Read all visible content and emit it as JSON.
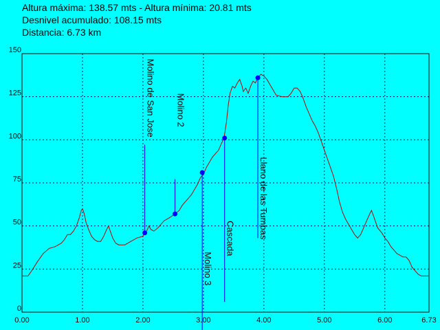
{
  "header": {
    "line1": "Altura máxima: 138.57 mts - Altura mínima: 20.81 mts",
    "line2": "Desnivel acumulado: 108.15 mts",
    "line3": "Distancia: 6.73 km"
  },
  "colors": {
    "background": "#00FFFF",
    "profile": "#B00000",
    "waypoint": "#0000FF",
    "grid": "#000080",
    "axes": "#000000"
  },
  "chart_data": {
    "type": "line",
    "xlim": [
      0,
      6.73
    ],
    "ylim": [
      0,
      150
    ],
    "x_ticks": [
      "0.00",
      "1.00",
      "2.00",
      "3.00",
      "4.00",
      "5.00",
      "6.00",
      "6.73"
    ],
    "x_tick_values": [
      0,
      1,
      2,
      3,
      4,
      5,
      6,
      6.73
    ],
    "y_ticks": [
      "0",
      "25",
      "50",
      "75",
      "100",
      "125",
      "150"
    ],
    "y_tick_values": [
      0,
      25,
      50,
      75,
      100,
      125,
      150
    ],
    "grid": true,
    "series": [
      {
        "points": [
          [
            0.0,
            21
          ],
          [
            0.1,
            21
          ],
          [
            0.18,
            25
          ],
          [
            0.25,
            29
          ],
          [
            0.35,
            34
          ],
          [
            0.45,
            37
          ],
          [
            0.55,
            38
          ],
          [
            0.65,
            40
          ],
          [
            0.7,
            42
          ],
          [
            0.75,
            45
          ],
          [
            0.8,
            45
          ],
          [
            0.85,
            47
          ],
          [
            0.9,
            50
          ],
          [
            0.95,
            55
          ],
          [
            0.98,
            59
          ],
          [
            1.0,
            60
          ],
          [
            1.03,
            57
          ],
          [
            1.06,
            52
          ],
          [
            1.1,
            48
          ],
          [
            1.15,
            44
          ],
          [
            1.2,
            42
          ],
          [
            1.25,
            41
          ],
          [
            1.3,
            41
          ],
          [
            1.35,
            44
          ],
          [
            1.4,
            48
          ],
          [
            1.43,
            50
          ],
          [
            1.46,
            47
          ],
          [
            1.5,
            43
          ],
          [
            1.55,
            40
          ],
          [
            1.6,
            39
          ],
          [
            1.7,
            39
          ],
          [
            1.8,
            41
          ],
          [
            1.9,
            43
          ],
          [
            2.0,
            44
          ],
          [
            2.03,
            46
          ],
          [
            2.06,
            47
          ],
          [
            2.1,
            50
          ],
          [
            2.13,
            48
          ],
          [
            2.18,
            47
          ],
          [
            2.25,
            49
          ],
          [
            2.35,
            53
          ],
          [
            2.45,
            55
          ],
          [
            2.53,
            57
          ],
          [
            2.6,
            59
          ],
          [
            2.65,
            62
          ],
          [
            2.7,
            64
          ],
          [
            2.75,
            66
          ],
          [
            2.8,
            68
          ],
          [
            2.85,
            71
          ],
          [
            2.9,
            74
          ],
          [
            2.95,
            78
          ],
          [
            3.0,
            80
          ],
          [
            3.05,
            84
          ],
          [
            3.1,
            87
          ],
          [
            3.15,
            90
          ],
          [
            3.2,
            92
          ],
          [
            3.25,
            94
          ],
          [
            3.3,
            98
          ],
          [
            3.34,
            101
          ],
          [
            3.38,
            110
          ],
          [
            3.41,
            120
          ],
          [
            3.44,
            127
          ],
          [
            3.48,
            131
          ],
          [
            3.52,
            130
          ],
          [
            3.56,
            133
          ],
          [
            3.6,
            135
          ],
          [
            3.64,
            131
          ],
          [
            3.66,
            128
          ],
          [
            3.7,
            130
          ],
          [
            3.74,
            127
          ],
          [
            3.78,
            131
          ],
          [
            3.82,
            134
          ],
          [
            3.86,
            133
          ],
          [
            3.9,
            136
          ],
          [
            3.95,
            138
          ],
          [
            4.0,
            137
          ],
          [
            4.05,
            135
          ],
          [
            4.1,
            132
          ],
          [
            4.15,
            129
          ],
          [
            4.2,
            126
          ],
          [
            4.3,
            125
          ],
          [
            4.4,
            125
          ],
          [
            4.45,
            127
          ],
          [
            4.5,
            130
          ],
          [
            4.55,
            130
          ],
          [
            4.6,
            128
          ],
          [
            4.65,
            124
          ],
          [
            4.7,
            119
          ],
          [
            4.75,
            115
          ],
          [
            4.8,
            111
          ],
          [
            4.85,
            108
          ],
          [
            4.9,
            104
          ],
          [
            4.95,
            99
          ],
          [
            5.0,
            94
          ],
          [
            5.05,
            89
          ],
          [
            5.1,
            84
          ],
          [
            5.15,
            79
          ],
          [
            5.2,
            72
          ],
          [
            5.25,
            64
          ],
          [
            5.3,
            58
          ],
          [
            5.35,
            54
          ],
          [
            5.4,
            51
          ],
          [
            5.45,
            48
          ],
          [
            5.5,
            45
          ],
          [
            5.55,
            43
          ],
          [
            5.6,
            45
          ],
          [
            5.65,
            49
          ],
          [
            5.7,
            53
          ],
          [
            5.75,
            57
          ],
          [
            5.78,
            59
          ],
          [
            5.82,
            55
          ],
          [
            5.88,
            49
          ],
          [
            5.95,
            46
          ],
          [
            6.0,
            43
          ],
          [
            6.05,
            41
          ],
          [
            6.1,
            38
          ],
          [
            6.15,
            36
          ],
          [
            6.2,
            34
          ],
          [
            6.3,
            32
          ],
          [
            6.35,
            32
          ],
          [
            6.4,
            30
          ],
          [
            6.45,
            26
          ],
          [
            6.5,
            24
          ],
          [
            6.55,
            22
          ],
          [
            6.6,
            21
          ],
          [
            6.73,
            21
          ]
        ]
      }
    ],
    "waypoints": [
      {
        "label": "Molino de San Jose",
        "x": 2.03,
        "y": 46,
        "label_pos": "above",
        "label_y_top": 147
      },
      {
        "label": "Molino 2",
        "x": 2.53,
        "y": 57,
        "label_pos": "above",
        "label_y_top": 127
      },
      {
        "label": "Molino 3",
        "x": 2.98,
        "y": 81,
        "label_pos": "below",
        "label_y_top": 35
      },
      {
        "label": "Cascada",
        "x": 3.35,
        "y": 101,
        "label_pos": "below",
        "label_y_top": 53
      },
      {
        "label": "Llano de las Tumbas",
        "x": 3.9,
        "y": 136,
        "label_pos": "below",
        "label_y_top": 90
      }
    ]
  }
}
